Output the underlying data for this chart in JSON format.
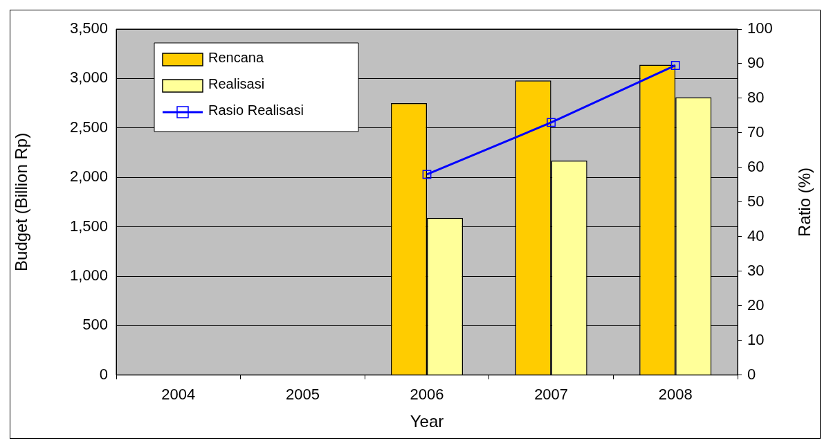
{
  "chart_data": {
    "type": "bar",
    "xlabel": "Year",
    "ylabel": "Budget (Billion Rp)",
    "y2label": "Ratio (%)",
    "categories": [
      "2004",
      "2005",
      "2006",
      "2007",
      "2008"
    ],
    "series": [
      {
        "name": "Rencana",
        "color": "#ffcc00",
        "values": [
          null,
          null,
          2750,
          2980,
          3140
        ]
      },
      {
        "name": "Realisasi",
        "color": "#ffff99",
        "values": [
          null,
          null,
          1590,
          2170,
          2810
        ]
      },
      {
        "name": "Rasio Realisasi",
        "type": "line",
        "axis": "y2",
        "color": "#0000ff",
        "values": [
          null,
          null,
          58,
          73,
          89.5
        ]
      }
    ],
    "ylim": [
      0,
      3500
    ],
    "yticks": [
      0,
      500,
      {
        "value": 1000,
        "label": "1,000"
      },
      {
        "value": 1500,
        "label": "1,500"
      },
      {
        "value": 2000,
        "label": "2,000"
      },
      {
        "value": 2500,
        "label": "2,500"
      },
      {
        "value": 3000,
        "label": "3,000"
      },
      {
        "value": 3500,
        "label": "3,500"
      }
    ],
    "y2lim": [
      0,
      100
    ],
    "y2ticks": [
      0,
      10,
      20,
      30,
      40,
      50,
      60,
      70,
      80,
      90,
      100
    ],
    "grid": "y",
    "legend": "top left",
    "marker": "square",
    "line_style": "solid"
  }
}
